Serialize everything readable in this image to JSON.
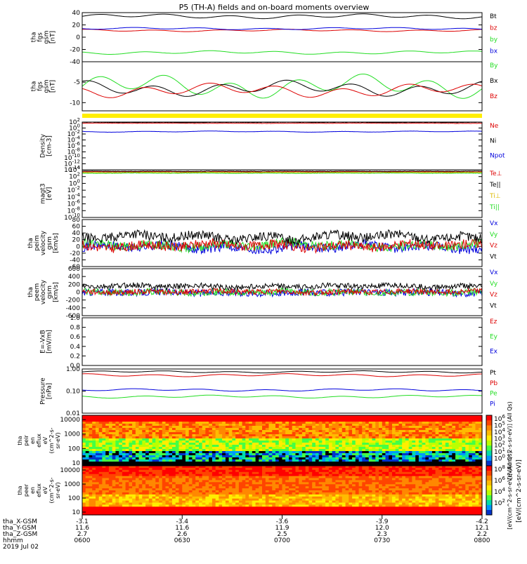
{
  "title": "P5 (TH-A) fields and on-board moments overview",
  "chart_data": {
    "type": "line",
    "time_axis": {
      "ticks": [
        "0600",
        "0630",
        "0700",
        "0730",
        "0800"
      ],
      "rows": [
        {
          "label": "tha_X-GSM",
          "values": [
            "-3.1",
            "-3.4",
            "-3.6",
            "-3.9",
            "-4.2"
          ]
        },
        {
          "label": "tha_Y-GSM",
          "values": [
            "11.6",
            "11.6",
            "11.9",
            "12.0",
            "12.1"
          ]
        },
        {
          "label": "tha_Z-GSM",
          "values": [
            "2.7",
            "2.6",
            "2.5",
            "2.3",
            "2.2"
          ]
        },
        {
          "label": "hhmm",
          "values": [
            "0600",
            "0630",
            "0700",
            "0730",
            "0800"
          ]
        }
      ],
      "date": "2019 Jul 02"
    },
    "panels": [
      {
        "id": "fgs",
        "ylabel": [
          "tha",
          "fgs",
          "gsm",
          "[nT]"
        ],
        "yticks": [
          "40",
          "20",
          "0",
          "-20",
          "-40"
        ],
        "ylim": [
          -40,
          40
        ],
        "series": [
          {
            "name": "Bt",
            "color": "#000000",
            "base": 34,
            "amp": 4,
            "noise": 0
          },
          {
            "name": "bz",
            "color": "#dd0000",
            "base": 11,
            "amp": 2,
            "noise": 0
          },
          {
            "name": "by",
            "color": "#22dd22",
            "base": -25,
            "amp": 3,
            "noise": 0
          },
          {
            "name": "bx",
            "color": "#0000dd",
            "base": 14,
            "amp": 2,
            "noise": 0
          }
        ]
      },
      {
        "id": "fgs-dsl",
        "ylabel": [
          "tha",
          "fgs",
          "gsm",
          "[nT]"
        ],
        "yticks": [
          "-5",
          "-10"
        ],
        "ylim": [
          -12,
          0
        ],
        "series": [
          {
            "name": "By",
            "color": "#22dd22",
            "base": -6,
            "amp": 3,
            "noise": 0
          },
          {
            "name": "Bx",
            "color": "#000000",
            "base": -6.5,
            "amp": 2,
            "noise": 0
          },
          {
            "name": "Bz",
            "color": "#dd0000",
            "base": -7,
            "amp": 1.8,
            "noise": 0
          }
        ]
      },
      {
        "id": "density",
        "ylabel": [
          "Density",
          "[cm-3]"
        ],
        "yticks": [
          "10^2",
          "10^0",
          "10^-2",
          "10^-4",
          "10^-6",
          "10^-8",
          "10^-10",
          "10^-12",
          "10^-14"
        ],
        "ylim": [
          -14,
          2
        ],
        "scale": "log",
        "series": [
          {
            "name": "Ne",
            "color": "#dd0000",
            "base": 1.6,
            "amp": 0.05,
            "noise": 0.05
          },
          {
            "name": "Ni",
            "color": "#000000",
            "base": 1.9,
            "amp": 0.05,
            "noise": 0.05
          },
          {
            "name": "Npot",
            "color": "#0000dd",
            "base": -1.2,
            "amp": 0.2,
            "noise": 0.02
          }
        ]
      },
      {
        "id": "temperature",
        "ylabel": [
          "magt3",
          "[eV]"
        ],
        "yticks": [
          "10^4",
          "10^2",
          "10^0",
          "10^-2",
          "10^-4",
          "10^-6",
          "10^-8",
          "10^-10"
        ],
        "ylim": [
          -10,
          4
        ],
        "scale": "log",
        "series": [
          {
            "name": "Te⊥",
            "color": "#dd0000",
            "base": 3.4,
            "amp": 0.05,
            "noise": 0.05
          },
          {
            "name": "Te||",
            "color": "#000000",
            "base": 3.6,
            "amp": 0.05,
            "noise": 0.05
          },
          {
            "name": "Ti⊥",
            "color": "#ddbb00",
            "base": 3.2,
            "amp": 0.05,
            "noise": 0.05
          },
          {
            "name": "Ti||",
            "color": "#22dd22",
            "base": 3.0,
            "amp": 0.05,
            "noise": 0.05
          }
        ]
      },
      {
        "id": "peim-velocity",
        "ylabel": [
          "tha",
          "peim",
          "velocity",
          "gsm",
          "[km/s]"
        ],
        "yticks": [
          "80",
          "60",
          "40",
          "20",
          "0",
          "-20",
          "-40",
          "-60"
        ],
        "ylim": [
          -60,
          80
        ],
        "series": [
          {
            "name": "Vx",
            "color": "#0000dd",
            "base": -2,
            "amp": 8,
            "noise": 14
          },
          {
            "name": "Vy",
            "color": "#22dd22",
            "base": 4,
            "amp": 8,
            "noise": 14
          },
          {
            "name": "Vz",
            "color": "#dd0000",
            "base": 2,
            "amp": 8,
            "noise": 14
          },
          {
            "name": "Vt",
            "color": "#000000",
            "base": 28,
            "amp": 10,
            "noise": 14
          }
        ]
      },
      {
        "id": "peem-velocity",
        "ylabel": [
          "tha",
          "peem",
          "velocity",
          "gsm",
          "[km/s]"
        ],
        "yticks": [
          "600",
          "400",
          "200",
          "0",
          "-200",
          "-400",
          "-600"
        ],
        "ylim": [
          -600,
          600
        ],
        "series": [
          {
            "name": "Vx",
            "color": "#0000dd",
            "base": -10,
            "amp": 20,
            "noise": 90
          },
          {
            "name": "Vy",
            "color": "#22dd22",
            "base": 0,
            "amp": 20,
            "noise": 90
          },
          {
            "name": "Vz",
            "color": "#dd0000",
            "base": 10,
            "amp": 20,
            "noise": 70
          },
          {
            "name": "Vt",
            "color": "#000000",
            "base": 150,
            "amp": 30,
            "noise": 70
          }
        ]
      },
      {
        "id": "efield",
        "ylabel": [
          "E=-VxB",
          "[mV/m]"
        ],
        "yticks": [
          "1.0",
          "0.8",
          "0.6",
          "0.4",
          "0.2",
          "0.0"
        ],
        "ylim": [
          0,
          1
        ],
        "series": [],
        "legend": [
          {
            "name": "Ez",
            "color": "#dd0000"
          },
          {
            "name": "Ey",
            "color": "#22dd22"
          },
          {
            "name": "Ex",
            "color": "#0000dd"
          }
        ]
      },
      {
        "id": "pressure",
        "ylabel": [
          "Pressure",
          "[nPa]"
        ],
        "yticks": [
          "1.00",
          "0.10",
          "0.01"
        ],
        "ylim": [
          -2,
          0
        ],
        "scale": "log",
        "series": [
          {
            "name": "Pt",
            "color": "#000000",
            "base": -0.13,
            "amp": 0.05,
            "noise": 0
          },
          {
            "name": "Pb",
            "color": "#dd0000",
            "base": -0.28,
            "amp": 0.07,
            "noise": 0
          },
          {
            "name": "Pe",
            "color": "#22dd22",
            "base": -1.25,
            "amp": 0.07,
            "noise": 0
          },
          {
            "name": "Pi",
            "color": "#0000dd",
            "base": -0.95,
            "amp": 0.06,
            "noise": 0
          }
        ]
      }
    ],
    "spectrograms": [
      {
        "id": "peir",
        "ylabel": [
          "tha",
          "peir",
          "en",
          "eflux",
          "eV",
          "(cm^2-s-",
          "sr-eV)"
        ],
        "yticks": [
          "10000",
          "1000",
          "100",
          "10"
        ],
        "colorbar_ticks": [
          "10^6",
          "10^5",
          "10^4",
          "10^3",
          "10^2",
          "10^1",
          "10^0"
        ],
        "colorbar_label": "[eV/(cm^2-s-sr-eV)] (All Qs)"
      },
      {
        "id": "peer",
        "ylabel": [
          "tha",
          "peer",
          "en",
          "eflux",
          "eV",
          "(cm^2-s-",
          "sr-eV)"
        ],
        "yticks": [
          "10000",
          "1000",
          "100",
          "10"
        ],
        "colorbar_ticks": [
          "10^8",
          "10^6",
          "10^4",
          "10^2"
        ],
        "colorbar_label": "[eV/(cm^2-s-sr-eV)] (All Qs)"
      }
    ],
    "colorbar_label": "[eV/(cm^2-s-sr-eV)]"
  }
}
